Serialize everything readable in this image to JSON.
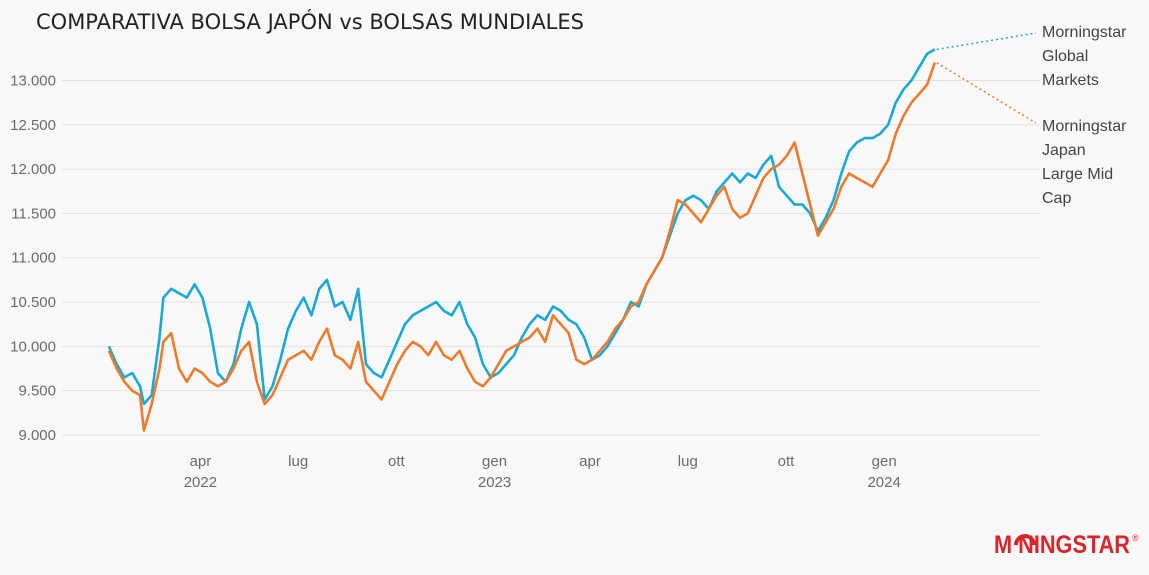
{
  "chart_data": {
    "type": "line",
    "title": "COMPARATIVA BOLSA JAPÓN vs BOLSAS MUNDIALES",
    "xlabel": "",
    "ylabel": "",
    "ylim": [
      9000,
      13400
    ],
    "yticks": [
      9000,
      9500,
      10000,
      10500,
      11000,
      11500,
      12000,
      12500,
      13000
    ],
    "ytick_labels": [
      "9.000",
      "9.500",
      "10.000",
      "10.500",
      "11.000",
      "11.500",
      "12.000",
      "12.500",
      "13.000"
    ],
    "x_domain": [
      2021.9,
      2024.4
    ],
    "xticks": [
      {
        "x": 2022.245,
        "label": "apr",
        "year": "2022"
      },
      {
        "x": 2022.496,
        "label": "lug",
        "year": ""
      },
      {
        "x": 2022.748,
        "label": "ott",
        "year": ""
      },
      {
        "x": 2023.0,
        "label": "gen",
        "year": "2023"
      },
      {
        "x": 2023.245,
        "label": "apr",
        "year": ""
      },
      {
        "x": 2023.496,
        "label": "lug",
        "year": ""
      },
      {
        "x": 2023.748,
        "label": "ott",
        "year": ""
      },
      {
        "x": 2024.0,
        "label": "gen",
        "year": "2024"
      }
    ],
    "grid": true,
    "legend": "right, inline labels at line ends",
    "series": [
      {
        "name": "Morningstar Global Markets",
        "label_lines": [
          "Morningstar",
          "Global",
          "Markets"
        ],
        "color": "#1aa8d6",
        "x": [
          2022.01,
          2022.03,
          2022.05,
          2022.07,
          2022.09,
          2022.1,
          2022.12,
          2022.14,
          2022.15,
          2022.17,
          2022.19,
          2022.21,
          2022.23,
          2022.25,
          2022.27,
          2022.29,
          2022.31,
          2022.33,
          2022.35,
          2022.37,
          2022.39,
          2022.41,
          2022.43,
          2022.45,
          2022.47,
          2022.49,
          2022.51,
          2022.53,
          2022.55,
          2022.57,
          2022.59,
          2022.61,
          2022.63,
          2022.65,
          2022.67,
          2022.69,
          2022.71,
          2022.73,
          2022.75,
          2022.77,
          2022.79,
          2022.81,
          2022.83,
          2022.85,
          2022.87,
          2022.89,
          2022.91,
          2022.93,
          2022.95,
          2022.97,
          2022.99,
          2023.01,
          2023.03,
          2023.05,
          2023.07,
          2023.09,
          2023.11,
          2023.13,
          2023.15,
          2023.17,
          2023.19,
          2023.21,
          2023.23,
          2023.25,
          2023.27,
          2023.29,
          2023.31,
          2023.33,
          2023.35,
          2023.37,
          2023.39,
          2023.41,
          2023.43,
          2023.45,
          2023.47,
          2023.49,
          2023.51,
          2023.53,
          2023.55,
          2023.57,
          2023.59,
          2023.61,
          2023.63,
          2023.65,
          2023.67,
          2023.69,
          2023.71,
          2023.73,
          2023.75,
          2023.77,
          2023.79,
          2023.81,
          2023.83,
          2023.85,
          2023.87,
          2023.89,
          2023.91,
          2023.93,
          2023.95,
          2023.97,
          2023.99,
          2024.01,
          2024.03,
          2024.05,
          2024.07,
          2024.09,
          2024.11,
          2024.13
        ],
        "values": [
          10000,
          9800,
          9650,
          9700,
          9550,
          9350,
          9450,
          10100,
          10550,
          10650,
          10600,
          10550,
          10700,
          10550,
          10200,
          9700,
          9600,
          9800,
          10200,
          10500,
          10250,
          9400,
          9550,
          9850,
          10200,
          10400,
          10550,
          10350,
          10650,
          10750,
          10450,
          10500,
          10300,
          10650,
          9800,
          9700,
          9650,
          9850,
          10050,
          10250,
          10350,
          10400,
          10450,
          10500,
          10400,
          10350,
          10500,
          10250,
          10100,
          9800,
          9650,
          9700,
          9800,
          9900,
          10100,
          10250,
          10350,
          10300,
          10450,
          10400,
          10300,
          10250,
          10100,
          9850,
          9900,
          10000,
          10150,
          10300,
          10500,
          10450,
          10700,
          10850,
          11000,
          11250,
          11500,
          11650,
          11700,
          11650,
          11550,
          11750,
          11850,
          11950,
          11850,
          11950,
          11900,
          12050,
          12150,
          11800,
          11700,
          11600,
          11600,
          11500,
          11300,
          11450,
          11650,
          11950,
          12200,
          12300,
          12350,
          12350,
          12400,
          12500,
          12750,
          12900,
          13000,
          13150,
          13300,
          13350
        ]
      },
      {
        "name": "Morningstar Japan Large Mid Cap",
        "label_lines": [
          "Morningstar",
          "Japan",
          "Large Mid",
          "Cap"
        ],
        "color": "#ee7a2d",
        "x": [
          2022.01,
          2022.03,
          2022.05,
          2022.07,
          2022.09,
          2022.1,
          2022.12,
          2022.14,
          2022.15,
          2022.17,
          2022.19,
          2022.21,
          2022.23,
          2022.25,
          2022.27,
          2022.29,
          2022.31,
          2022.33,
          2022.35,
          2022.37,
          2022.39,
          2022.41,
          2022.43,
          2022.45,
          2022.47,
          2022.49,
          2022.51,
          2022.53,
          2022.55,
          2022.57,
          2022.59,
          2022.61,
          2022.63,
          2022.65,
          2022.67,
          2022.69,
          2022.71,
          2022.73,
          2022.75,
          2022.77,
          2022.79,
          2022.81,
          2022.83,
          2022.85,
          2022.87,
          2022.89,
          2022.91,
          2022.93,
          2022.95,
          2022.97,
          2022.99,
          2023.01,
          2023.03,
          2023.05,
          2023.07,
          2023.09,
          2023.11,
          2023.13,
          2023.15,
          2023.17,
          2023.19,
          2023.21,
          2023.23,
          2023.25,
          2023.27,
          2023.29,
          2023.31,
          2023.33,
          2023.35,
          2023.37,
          2023.39,
          2023.41,
          2023.43,
          2023.45,
          2023.47,
          2023.49,
          2023.51,
          2023.53,
          2023.55,
          2023.57,
          2023.59,
          2023.61,
          2023.63,
          2023.65,
          2023.67,
          2023.69,
          2023.71,
          2023.73,
          2023.75,
          2023.77,
          2023.79,
          2023.81,
          2023.83,
          2023.85,
          2023.87,
          2023.89,
          2023.91,
          2023.93,
          2023.95,
          2023.97,
          2023.99,
          2024.01,
          2024.03,
          2024.05,
          2024.07,
          2024.09,
          2024.11,
          2024.13
        ],
        "values": [
          9950,
          9750,
          9600,
          9500,
          9450,
          9050,
          9350,
          9750,
          10050,
          10150,
          9750,
          9600,
          9750,
          9700,
          9600,
          9550,
          9600,
          9750,
          9950,
          10050,
          9600,
          9350,
          9450,
          9650,
          9850,
          9900,
          9950,
          9850,
          10050,
          10200,
          9900,
          9850,
          9750,
          10050,
          9600,
          9500,
          9400,
          9600,
          9800,
          9950,
          10050,
          10000,
          9900,
          10050,
          9900,
          9850,
          9950,
          9750,
          9600,
          9550,
          9650,
          9800,
          9950,
          10000,
          10050,
          10100,
          10200,
          10050,
          10350,
          10250,
          10150,
          9850,
          9800,
          9850,
          9950,
          10050,
          10200,
          10300,
          10450,
          10500,
          10700,
          10850,
          11000,
          11300,
          11650,
          11600,
          11500,
          11400,
          11550,
          11700,
          11800,
          11550,
          11450,
          11500,
          11700,
          11900,
          12000,
          12050,
          12150,
          12300,
          11950,
          11600,
          11250,
          11400,
          11550,
          11800,
          11950,
          11900,
          11850,
          11800,
          11950,
          12100,
          12400,
          12600,
          12750,
          12850,
          12950,
          13200
        ]
      }
    ]
  },
  "logo": {
    "text": "M NINGSTAR",
    "registered": "®"
  }
}
